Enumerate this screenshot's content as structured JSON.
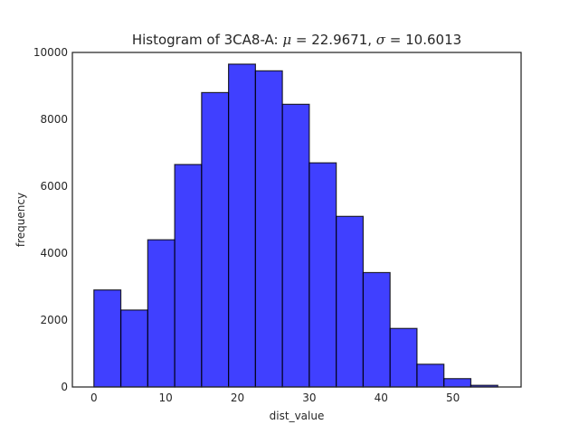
{
  "chart_data": {
    "type": "bar",
    "title": {
      "prefix": "Histogram of 3CA8-A: ",
      "mu_symbol": "μ",
      "mu_value": " = 22.9671, ",
      "sigma_symbol": "σ",
      "sigma_value": " = 10.6013"
    },
    "xlabel": "dist_value",
    "ylabel": "frequency",
    "xlim": [
      -3,
      59.5
    ],
    "ylim": [
      0,
      10000
    ],
    "xticks": [
      0,
      10,
      20,
      30,
      40,
      50
    ],
    "yticks": [
      0,
      2000,
      4000,
      6000,
      8000,
      10000
    ],
    "bin_edges": [
      0,
      3.75,
      7.5,
      11.25,
      15,
      18.75,
      22.5,
      26.25,
      30,
      33.75,
      37.5,
      41.25,
      45,
      48.75,
      52.5,
      56.25
    ],
    "values": [
      2900,
      2300,
      4400,
      6650,
      8800,
      9650,
      9450,
      8450,
      6700,
      5100,
      3420,
      1750,
      680,
      250,
      50
    ],
    "bar_color": "#0000ff",
    "bar_edge_color": "#000000",
    "grid": false
  }
}
